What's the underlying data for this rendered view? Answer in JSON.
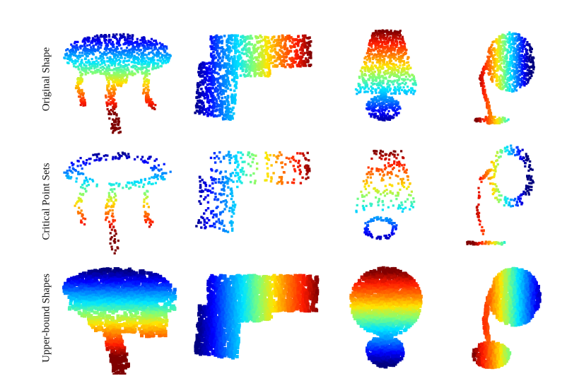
{
  "figure": {
    "row_labels": [
      "Original Shape",
      "Critical Point Sets",
      "Upper-bound Shapes"
    ],
    "columns": [
      "table",
      "gun",
      "lamp",
      "desk-lamp"
    ],
    "colormap": [
      "#00007f",
      "#0000ff",
      "#0080ff",
      "#00e5ff",
      "#7dff7a",
      "#ffe500",
      "#ff7700",
      "#ff1a00",
      "#7f0000"
    ]
  }
}
